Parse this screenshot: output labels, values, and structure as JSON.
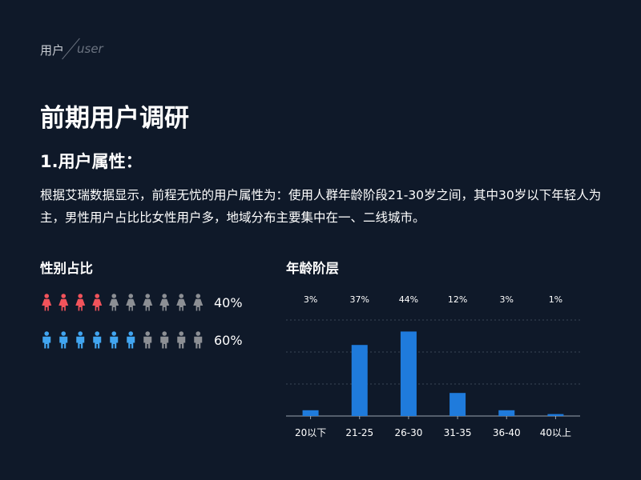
{
  "header": {
    "brand": "用户",
    "brand_sub": "user"
  },
  "page_title": "前期用户调研",
  "section_title": "1.用户属性：",
  "paragraph": "根据艾瑞数据显示，前程无忧的用户属性为：使用人群年龄阶段21-30岁之间，其中30岁以下年轻人为主，男性用户占比比女性用户多，地域分布主要集中在一、二线城市。",
  "gender": {
    "title": "性别占比",
    "total_icons": 10,
    "rows": [
      {
        "name": "female",
        "count": 4,
        "percent_label": "40%",
        "color": "#f2535b",
        "icon": "female-user-icon"
      },
      {
        "name": "male",
        "count": 6,
        "percent_label": "60%",
        "color": "#41a5f0",
        "icon": "male-user-icon"
      }
    ],
    "inactive_color": "#8c8f94"
  },
  "chart_data": {
    "type": "bar",
    "title": "年龄阶层",
    "categories": [
      "20以下",
      "21-25",
      "26-30",
      "31-35",
      "36-40",
      "40以上"
    ],
    "values": [
      3,
      37,
      44,
      12,
      3,
      1
    ],
    "value_labels": [
      "3%",
      "37%",
      "44%",
      "12%",
      "3%",
      "1%"
    ],
    "ylim": [
      0,
      50
    ],
    "grid": true,
    "bar_color": "#1f7bdc"
  }
}
